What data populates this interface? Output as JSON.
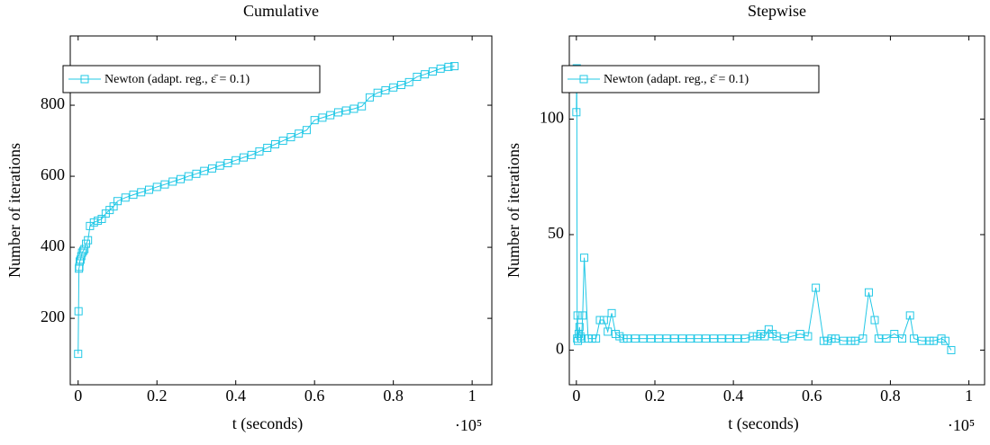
{
  "chart_data": [
    {
      "type": "line",
      "title": "Cumulative",
      "xlabel": "t (seconds)",
      "ylabel": "Number of iterations",
      "x_scale_label": "·10⁵",
      "x": [
        0,
        0.001,
        0.002,
        0.003,
        0.004,
        0.006,
        0.008,
        0.01,
        0.013,
        0.016,
        0.02,
        0.025,
        0.03,
        0.04,
        0.05,
        0.06,
        0.07,
        0.08,
        0.09,
        0.1,
        0.12,
        0.14,
        0.16,
        0.18,
        0.2,
        0.22,
        0.24,
        0.26,
        0.28,
        0.3,
        0.32,
        0.34,
        0.36,
        0.38,
        0.4,
        0.42,
        0.44,
        0.46,
        0.48,
        0.5,
        0.52,
        0.54,
        0.56,
        0.58,
        0.6,
        0.62,
        0.64,
        0.66,
        0.68,
        0.7,
        0.72,
        0.74,
        0.76,
        0.78,
        0.8,
        0.82,
        0.84,
        0.86,
        0.88,
        0.9,
        0.92,
        0.94,
        0.955
      ],
      "series": [
        {
          "name": "Newton (adapt. reg., ε̄ = 0.1)",
          "color": "#22c8e6",
          "marker": "square",
          "values": [
            100,
            220,
            340,
            345,
            360,
            365,
            375,
            385,
            390,
            395,
            410,
            420,
            460,
            470,
            475,
            480,
            495,
            505,
            515,
            530,
            540,
            548,
            555,
            562,
            570,
            577,
            585,
            592,
            600,
            607,
            615,
            622,
            630,
            637,
            645,
            653,
            660,
            670,
            680,
            690,
            700,
            710,
            720,
            730,
            758,
            765,
            772,
            780,
            785,
            790,
            797,
            822,
            835,
            842,
            850,
            857,
            865,
            880,
            887,
            895,
            903,
            908,
            910
          ]
        }
      ],
      "xlim": [
        -0.02,
        1.05
      ],
      "ylim": [
        13,
        995
      ],
      "xticks": [
        0,
        0.2,
        0.4,
        0.6,
        0.8,
        1
      ],
      "yticks": [
        200,
        400,
        600,
        800
      ],
      "legend": "upper left"
    },
    {
      "type": "line",
      "title": "Stepwise",
      "xlabel": "t (seconds)",
      "ylabel": "Number of iterations",
      "x_scale_label": "·10⁵",
      "x": [
        0,
        0.0005,
        0.001,
        0.002,
        0.003,
        0.004,
        0.006,
        0.008,
        0.01,
        0.013,
        0.016,
        0.02,
        0.03,
        0.04,
        0.05,
        0.06,
        0.07,
        0.08,
        0.09,
        0.1,
        0.11,
        0.12,
        0.13,
        0.15,
        0.17,
        0.19,
        0.21,
        0.23,
        0.25,
        0.27,
        0.29,
        0.31,
        0.33,
        0.35,
        0.37,
        0.39,
        0.41,
        0.43,
        0.45,
        0.46,
        0.47,
        0.48,
        0.49,
        0.5,
        0.51,
        0.53,
        0.55,
        0.57,
        0.59,
        0.61,
        0.63,
        0.64,
        0.65,
        0.66,
        0.68,
        0.7,
        0.71,
        0.73,
        0.745,
        0.76,
        0.77,
        0.79,
        0.81,
        0.83,
        0.85,
        0.86,
        0.88,
        0.9,
        0.91,
        0.93,
        0.94,
        0.955
      ],
      "series": [
        {
          "name": "Newton (adapt. reg., ε̄ = 0.1)",
          "color": "#22c8e6",
          "marker": "square",
          "values": [
            103,
            116,
            122,
            5,
            15,
            4,
            7,
            10,
            6,
            5,
            15,
            40,
            5,
            5,
            5,
            13,
            13,
            8,
            16,
            7,
            6,
            5,
            5,
            5,
            5,
            5,
            5,
            5,
            5,
            5,
            5,
            5,
            5,
            5,
            5,
            5,
            5,
            5,
            6,
            6,
            7,
            6,
            9,
            7,
            6,
            5,
            6,
            7,
            6,
            27,
            4,
            4,
            5,
            5,
            4,
            4,
            4,
            5,
            25,
            13,
            5,
            5,
            7,
            5,
            15,
            5,
            4,
            4,
            4,
            5,
            4,
            0
          ]
        }
      ],
      "xlim": [
        -0.018,
        1.04
      ],
      "ylim": [
        -15,
        136
      ],
      "xticks": [
        0,
        0.2,
        0.4,
        0.6,
        0.8,
        1
      ],
      "yticks": [
        0,
        50,
        100
      ],
      "legend": "upper left"
    }
  ]
}
